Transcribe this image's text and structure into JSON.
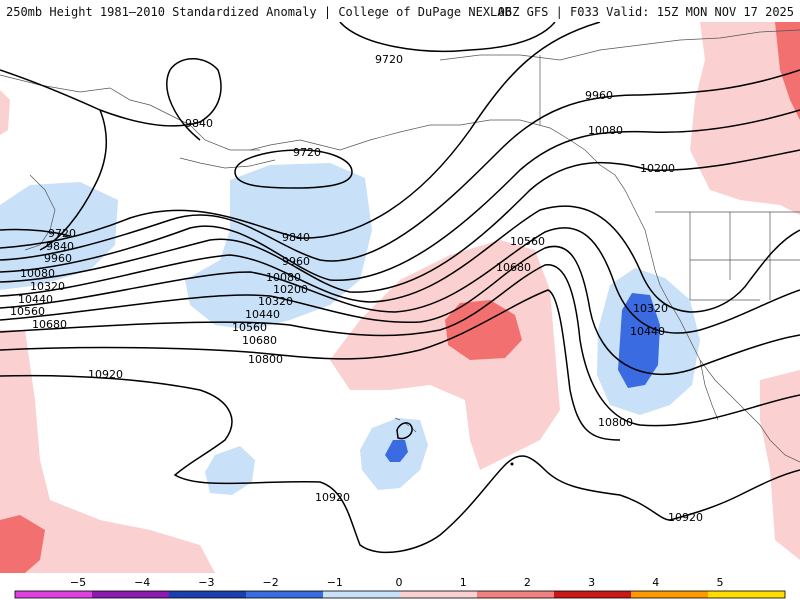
{
  "header": {
    "title": "250mb Height 1981–2010 Standardized Anomaly | College of DuPage NEXLAB",
    "run_info": "06Z GFS | F033 Valid: 15Z MON NOV 17 2025"
  },
  "contours": [
    {
      "value": "9720"
    },
    {
      "value": "9720"
    },
    {
      "value": "9720"
    },
    {
      "value": "9840"
    },
    {
      "value": "9840"
    },
    {
      "value": "9840"
    },
    {
      "value": "9960"
    },
    {
      "value": "9960"
    },
    {
      "value": "9960"
    },
    {
      "value": "10080"
    },
    {
      "value": "10080"
    },
    {
      "value": "10080"
    },
    {
      "value": "10200"
    },
    {
      "value": "10200"
    },
    {
      "value": "10320"
    },
    {
      "value": "10320"
    },
    {
      "value": "10320"
    },
    {
      "value": "10440"
    },
    {
      "value": "10440"
    },
    {
      "value": "10440"
    },
    {
      "value": "10560"
    },
    {
      "value": "10560"
    },
    {
      "value": "10560"
    },
    {
      "value": "10680"
    },
    {
      "value": "10680"
    },
    {
      "value": "10680"
    },
    {
      "value": "10800"
    },
    {
      "value": "10800"
    },
    {
      "value": "10920"
    },
    {
      "value": "10920"
    },
    {
      "value": "10920"
    }
  ],
  "colorbar": {
    "ticks": [
      "−5",
      "−4",
      "−3",
      "−2",
      "−1",
      "0",
      "1",
      "2",
      "3",
      "4",
      "5"
    ],
    "colors": [
      "#e040e0",
      "#8a1ab0",
      "#1a3fb0",
      "#3a6be0",
      "#c8e0f8",
      "#ffffff",
      "#fbd0d0",
      "#f28080",
      "#c81818",
      "#ff9900",
      "#ffdd00"
    ]
  },
  "anomaly_colors": {
    "light_blue": "#c8e0f8",
    "medium_blue": "#3a6be0",
    "light_red": "#fbd0d0",
    "medium_red": "#f27070"
  }
}
